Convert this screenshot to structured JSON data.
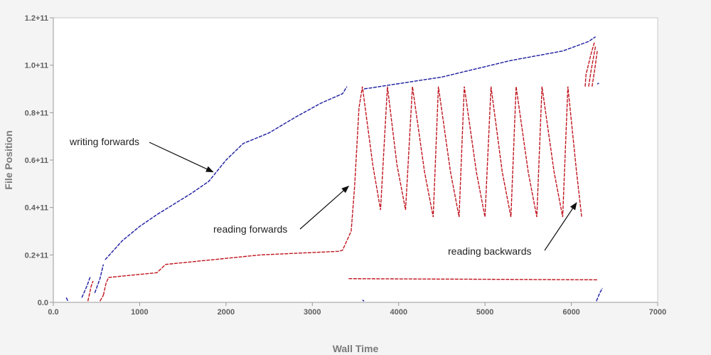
{
  "chart_data": {
    "type": "scatter",
    "title": "",
    "xlabel": "Wall Time",
    "ylabel": "File Position",
    "xlim": [
      0,
      7000
    ],
    "ylim": [
      0,
      120000000000
    ],
    "x_ticks": [
      0,
      1000,
      2000,
      3000,
      4000,
      5000,
      6000,
      7000
    ],
    "x_tick_labels": [
      "0.0",
      "1000",
      "2000",
      "3000",
      "4000",
      "5000",
      "6000",
      "7000"
    ],
    "y_ticks": [
      0,
      20000000000,
      40000000000,
      60000000000,
      80000000000,
      100000000000,
      120000000000
    ],
    "y_tick_labels": [
      "0.0",
      "0.2+11",
      "0.4+11",
      "0.6+11",
      "0.8+11",
      "1.0+11",
      "1.2+11"
    ],
    "grid": false,
    "colors": {
      "write": "#1a1aa0",
      "read": "#c0141e"
    },
    "series": [
      {
        "kind": "write",
        "segments": [
          [
            [
              150,
              2000000000.0
            ],
            [
              170,
              500000000.0
            ]
          ],
          [
            [
              330,
              2000000000.0
            ],
            [
              390,
              7000000000.0
            ],
            [
              430,
              11000000000.0
            ]
          ],
          [
            [
              480,
              4000000000.0
            ],
            [
              540,
              10000000000.0
            ],
            [
              580,
              16000000000.0
            ]
          ],
          [
            [
              600,
              18000000000.0
            ],
            [
              800,
              26000000000.0
            ],
            [
              1000,
              32000000000.0
            ],
            [
              1200,
              37000000000.0
            ],
            [
              1400,
              41500000000.0
            ],
            [
              1600,
              46000000000.0
            ],
            [
              1800,
              51000000000.0
            ],
            [
              2000,
              60000000000.0
            ],
            [
              2200,
              67000000000.0
            ],
            [
              2500,
              71500000000.0
            ],
            [
              2800,
              78000000000.0
            ],
            [
              3100,
              84000000000.0
            ],
            [
              3350,
              88000000000.0
            ],
            [
              3400,
              91000000000.0
            ]
          ],
          [
            [
              3600,
              90000000000.0
            ],
            [
              4500,
              95000000000.0
            ],
            [
              5300,
              102000000000.0
            ],
            [
              5900,
              106000000000.0
            ],
            [
              6200,
              110000000000.0
            ],
            [
              6280,
              112000000000.0
            ]
          ],
          [
            [
              6300,
              92000000000.0
            ],
            [
              6320,
              92500000000.0
            ]
          ],
          [
            [
              6290,
              500000000.0
            ],
            [
              6330,
              4000000000.0
            ],
            [
              6360,
              6000000000.0
            ]
          ],
          [
            [
              3580,
              1000000000.0
            ],
            [
              3600,
              500000000.0
            ]
          ]
        ]
      },
      {
        "kind": "read",
        "segments": [
          [
            [
              400,
              500000000.0
            ],
            [
              440,
              7000000000.0
            ],
            [
              460,
              9000000000.0
            ]
          ],
          [
            [
              580,
              3000000000.0
            ],
            [
              610,
              8000000000.0
            ],
            [
              640,
              10500000000.0
            ],
            [
              1200,
              12500000000.0
            ],
            [
              1300,
              16000000000.0
            ],
            [
              2400,
              20000000000.0
            ],
            [
              3300,
              21500000000.0
            ],
            [
              3350,
              22000000000.0
            ],
            [
              3450,
              30000000000.0
            ],
            [
              3490,
              49000000000.0
            ],
            [
              3540,
              82000000000.0
            ],
            [
              3580,
              91000000000.0
            ],
            [
              3700,
              58000000000.0
            ],
            [
              3790,
              39000000000.0
            ],
            [
              3870,
              91000000000.0
            ],
            [
              3980,
              58000000000.0
            ],
            [
              4080,
              39000000000.0
            ],
            [
              4160,
              91000000000.0
            ],
            [
              4300,
              55000000000.0
            ],
            [
              4400,
              36000000000.0
            ],
            [
              4460,
              91000000000.0
            ],
            [
              4600,
              55000000000.0
            ],
            [
              4700,
              36000000000.0
            ],
            [
              4760,
              91000000000.0
            ],
            [
              4900,
              55000000000.0
            ],
            [
              5000,
              36000000000.0
            ],
            [
              5070,
              91000000000.0
            ],
            [
              5200,
              55000000000.0
            ],
            [
              5300,
              36000000000.0
            ],
            [
              5360,
              91000000000.0
            ],
            [
              5500,
              55000000000.0
            ],
            [
              5600,
              36000000000.0
            ],
            [
              5660,
              91000000000.0
            ],
            [
              5800,
              55000000000.0
            ],
            [
              5900,
              36000000000.0
            ],
            [
              5960,
              91000000000.0
            ],
            [
              6060,
              55000000000.0
            ],
            [
              6120,
              36000000000.0
            ]
          ],
          [
            [
              6160,
              91000000000.0
            ],
            [
              6170,
              96000000000.0
            ],
            [
              6230,
              105000000000.0
            ],
            [
              6270,
              110000000000.0
            ]
          ],
          [
            [
              6200,
              91000000000.0
            ],
            [
              6230,
              98000000000.0
            ],
            [
              6280,
              108000000000.0
            ]
          ],
          [
            [
              6240,
              91000000000.0
            ],
            [
              6270,
              98000000000.0
            ],
            [
              6300,
              106000000000.0
            ]
          ],
          [
            [
              3420,
              10000000000.0
            ],
            [
              6300,
              9500000000.0
            ]
          ],
          [
            [
              540,
              500000000.0
            ],
            [
              580,
              3000000000.0
            ]
          ]
        ]
      }
    ],
    "annotations": [
      {
        "text": "writing forwards",
        "point_to": [
          1850,
          55000000000.0
        ]
      },
      {
        "text": "reading forwards",
        "point_to": [
          3420,
          49000000000.0
        ]
      },
      {
        "text": "reading backwards",
        "point_to": [
          6060,
          42000000000.0
        ]
      }
    ]
  }
}
